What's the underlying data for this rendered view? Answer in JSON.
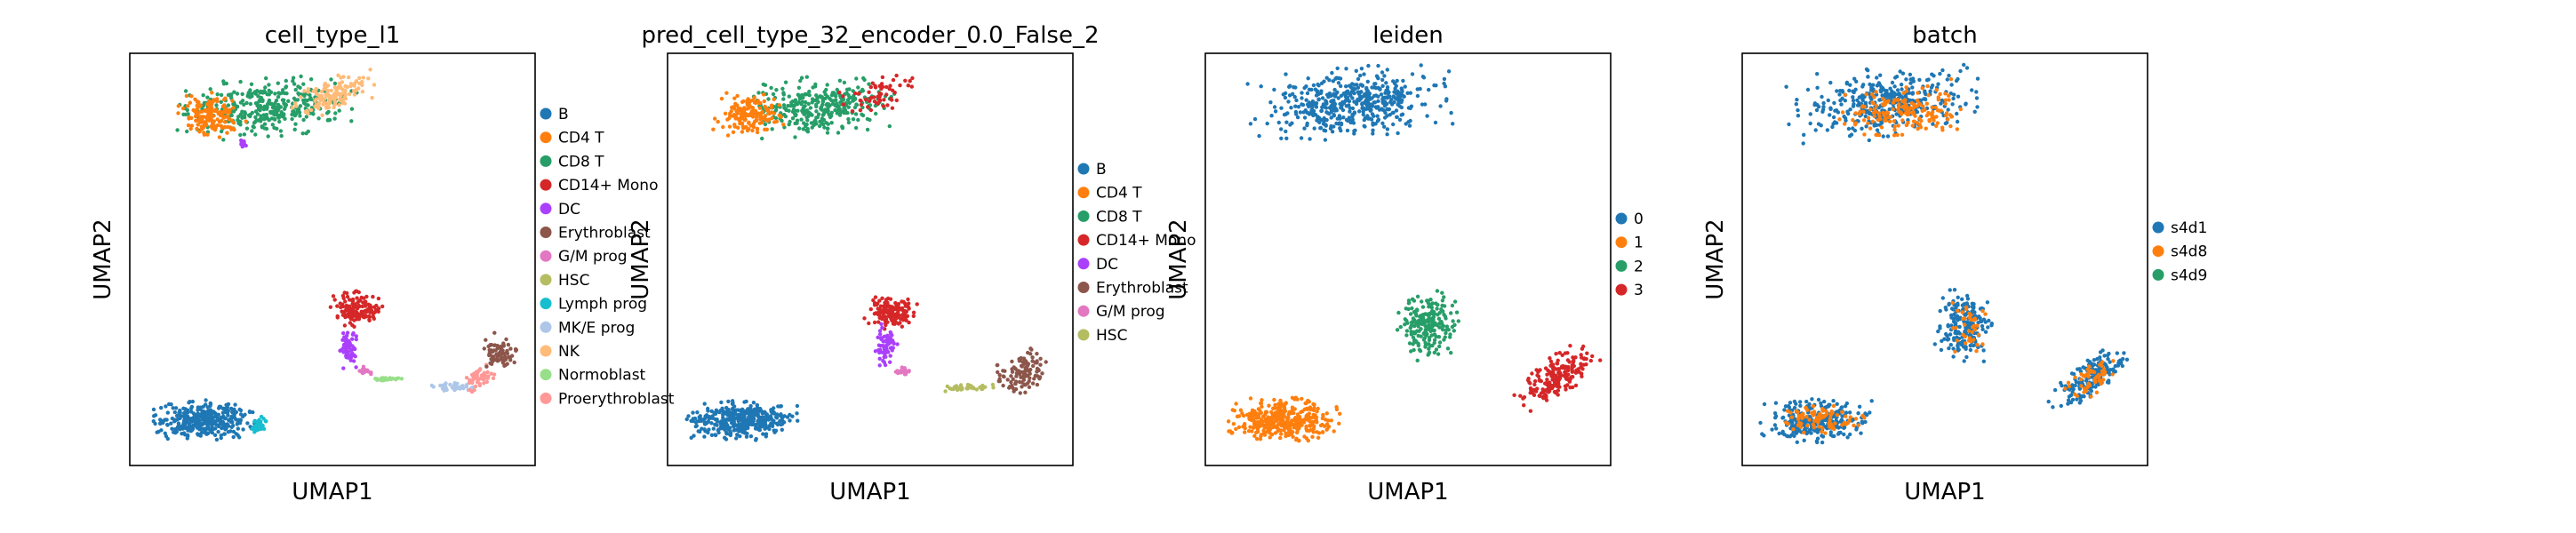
{
  "chart_data": [
    {
      "type": "scatter",
      "title": "cell_type_l1",
      "xlabel": "UMAP1",
      "ylabel": "UMAP2",
      "legend_position": "right",
      "categories": [
        {
          "name": "B",
          "color": "#1f77b4"
        },
        {
          "name": "CD4 T",
          "color": "#ff7f0e"
        },
        {
          "name": "CD8 T",
          "color": "#279e68"
        },
        {
          "name": "CD14+ Mono",
          "color": "#d62728"
        },
        {
          "name": "DC",
          "color": "#aa40fc"
        },
        {
          "name": "Erythroblast",
          "color": "#8c564b"
        },
        {
          "name": "G/M prog",
          "color": "#e377c2"
        },
        {
          "name": "HSC",
          "color": "#b5bd61"
        },
        {
          "name": "Lymph prog",
          "color": "#17becf"
        },
        {
          "name": "MK/E prog",
          "color": "#aec7e8"
        },
        {
          "name": "NK",
          "color": "#ffbb78"
        },
        {
          "name": "Normoblast",
          "color": "#98df8a"
        },
        {
          "name": "Proerythroblast",
          "color": "#ff9896"
        }
      ]
    },
    {
      "type": "scatter",
      "title": "pred_cell_type_32_encoder_0.0_False_2",
      "xlabel": "UMAP1",
      "ylabel": "UMAP2",
      "legend_position": "right",
      "categories": [
        {
          "name": "B",
          "color": "#1f77b4"
        },
        {
          "name": "CD4 T",
          "color": "#ff7f0e"
        },
        {
          "name": "CD8 T",
          "color": "#279e68"
        },
        {
          "name": "CD14+ Mono",
          "color": "#d62728"
        },
        {
          "name": "DC",
          "color": "#aa40fc"
        },
        {
          "name": "Erythroblast",
          "color": "#8c564b"
        },
        {
          "name": "G/M prog",
          "color": "#e377c2"
        },
        {
          "name": "HSC",
          "color": "#b5bd61"
        }
      ]
    },
    {
      "type": "scatter",
      "title": "leiden",
      "xlabel": "UMAP1",
      "ylabel": "UMAP2",
      "legend_position": "right",
      "categories": [
        {
          "name": "0",
          "color": "#1f77b4"
        },
        {
          "name": "1",
          "color": "#ff7f0e"
        },
        {
          "name": "2",
          "color": "#279e68"
        },
        {
          "name": "3",
          "color": "#d62728"
        }
      ]
    },
    {
      "type": "scatter",
      "title": "batch",
      "xlabel": "UMAP1",
      "ylabel": "UMAP2",
      "legend_position": "right",
      "categories": [
        {
          "name": "s4d1",
          "color": "#1f77b4"
        },
        {
          "name": "s4d8",
          "color": "#ff7f0e"
        },
        {
          "name": "s4d9",
          "color": "#279e68"
        }
      ]
    }
  ]
}
